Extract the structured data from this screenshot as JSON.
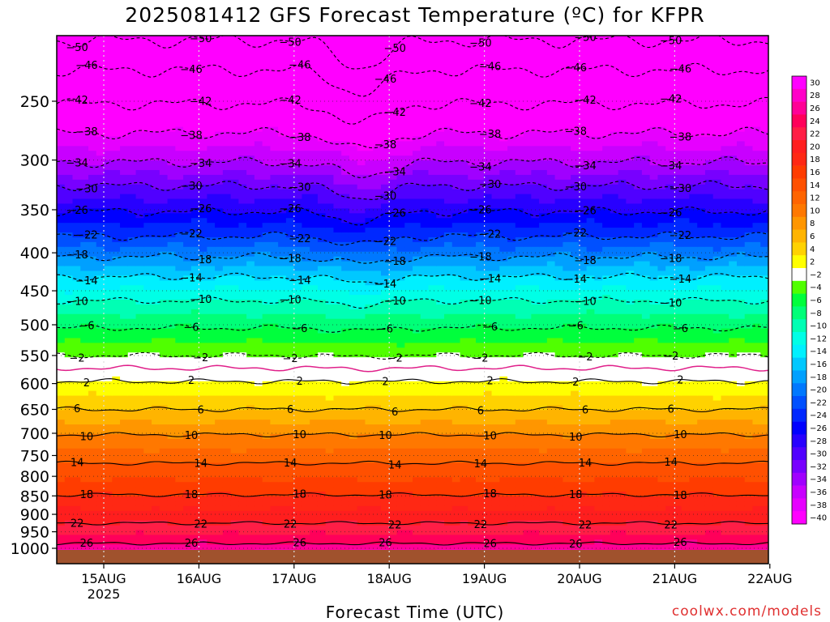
{
  "title": "2025081412 GFS Forecast Temperature (ºC) for KFPR",
  "credit": "coolwx.com/models",
  "chart_data": {
    "type": "heatmap",
    "title": "2025081412 GFS Forecast Temperature (ºC) for KFPR",
    "xlabel": "Forecast Time (UTC)",
    "ylabel": "",
    "x_ticks": [
      "15AUG",
      "16AUG",
      "17AUG",
      "18AUG",
      "19AUG",
      "20AUG",
      "21AUG",
      "22AUG"
    ],
    "x_ticks_values": [
      1,
      2,
      3,
      4,
      5,
      6,
      7,
      8
    ],
    "x_sublabel": "2025",
    "xlim": [
      0.48,
      8.0
    ],
    "y_ticks": [
      250,
      300,
      350,
      400,
      450,
      500,
      550,
      600,
      650,
      700,
      750,
      800,
      850,
      900,
      950,
      1000
    ],
    "ylim": [
      1025,
      200
    ],
    "y_scale": "log-pressure",
    "colorbar": {
      "labels": [
        30,
        28,
        26,
        24,
        22,
        20,
        18,
        16,
        14,
        12,
        10,
        8,
        6,
        4,
        2,
        -2,
        -4,
        -6,
        -8,
        -10,
        -12,
        -14,
        -16,
        -18,
        -20,
        -22,
        -24,
        -26,
        -28,
        -30,
        -32,
        -34,
        -36,
        -38,
        -40
      ],
      "colors": [
        "#ff00ff",
        "#ff00c8",
        "#ff0096",
        "#ff005a",
        "#ff1e46",
        "#ff1e1e",
        "#ff2814",
        "#ff3c00",
        "#ff5000",
        "#ff6400",
        "#ff7800",
        "#ff9600",
        "#ffb400",
        "#ffd200",
        "#ffff00",
        "#ffffff",
        "#50ff00",
        "#00ff3c",
        "#00ff78",
        "#00ffb4",
        "#00ffe6",
        "#00f0ff",
        "#00c8ff",
        "#00a0ff",
        "#0078ff",
        "#0050ff",
        "#0028ff",
        "#0000ff",
        "#2800ff",
        "#5000ff",
        "#7800ff",
        "#a000ff",
        "#c800ff",
        "#e600ff",
        "#ff00ff"
      ]
    },
    "contour_levels": [
      -50,
      -46,
      -42,
      -38,
      -34,
      -30,
      -26,
      -22,
      -18,
      -14,
      -10,
      -6,
      -2,
      2,
      6,
      10,
      14,
      18,
      22,
      26
    ],
    "freezing_line": 0,
    "contours_pressure": {
      "-50": 207,
      "-46": 227,
      "-42": 252,
      "-38": 276,
      "-34": 302,
      "-30": 325,
      "-26": 352,
      "-22": 380,
      "-18": 405,
      "-14": 431,
      "-10": 464,
      "-6": 505,
      "-2": 550,
      "0": 572,
      "2": 596,
      "6": 650,
      "10": 703,
      "14": 768,
      "18": 847,
      "22": 925,
      "26": 985
    },
    "contour_label_times": [
      0.76,
      1.96,
      3.0,
      4.0,
      5.0,
      6.0,
      7.0
    ],
    "grid": true,
    "legend_position": "right"
  }
}
